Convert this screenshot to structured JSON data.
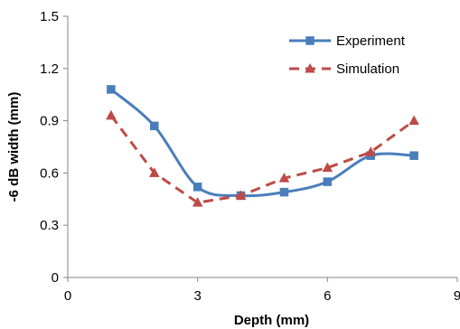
{
  "chart_data": {
    "type": "line",
    "title": "",
    "xlabel": "Depth (mm)",
    "ylabel": "-6 dB width (mm)",
    "xlim": [
      0,
      9
    ],
    "ylim": [
      0,
      1.5
    ],
    "x_ticks": [
      0,
      3,
      6,
      9
    ],
    "y_ticks": [
      0,
      0.3,
      0.6,
      0.9,
      1.2,
      1.5
    ],
    "x_tick_labels": [
      "0",
      "3",
      "6",
      "9"
    ],
    "y_tick_labels": [
      "0",
      "0.3",
      "0.6",
      "0.9",
      "1.2",
      "1.5"
    ],
    "grid": false,
    "legend_position": "top-right",
    "series": [
      {
        "name": "Experiment",
        "color": "#4a7ebb",
        "marker": "square",
        "line_style": "solid",
        "smooth": true,
        "x": [
          1,
          2,
          3,
          4,
          5,
          6,
          7,
          8
        ],
        "y": [
          1.08,
          0.87,
          0.52,
          0.47,
          0.49,
          0.55,
          0.7,
          0.7
        ]
      },
      {
        "name": "Simulation",
        "color": "#be4b48",
        "marker": "triangle",
        "line_style": "dashed",
        "smooth": false,
        "x": [
          1,
          2,
          3,
          4,
          5,
          6,
          7,
          8
        ],
        "y": [
          0.93,
          0.6,
          0.43,
          0.47,
          0.57,
          0.63,
          0.72,
          0.9
        ]
      }
    ]
  }
}
